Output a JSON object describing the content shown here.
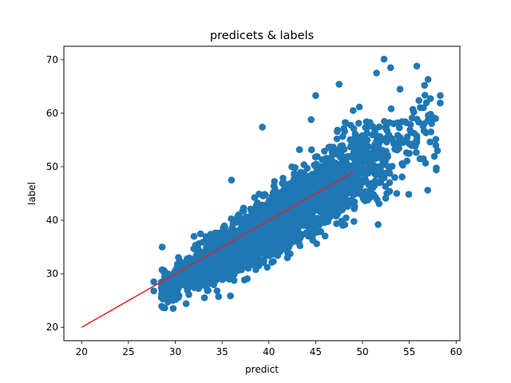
{
  "chart_data": {
    "type": "scatter",
    "title": "predicets & labels",
    "xlabel": "predict",
    "ylabel": "label",
    "xlim": [
      18.1,
      60.4
    ],
    "ylim": [
      17.5,
      72.5
    ],
    "x_ticks": [
      20,
      25,
      30,
      35,
      40,
      45,
      50,
      55,
      60
    ],
    "y_ticks": [
      20,
      30,
      40,
      50,
      60,
      70
    ],
    "grid": false,
    "legend": "none",
    "colors": {
      "points": "#1f77b4",
      "fit_line": "#d62728",
      "axes": "#000000"
    },
    "series": [
      {
        "kind": "scatter",
        "values_description_count": 3000,
        "anchor_points": [
          [
            27.7,
            26.8
          ],
          [
            27.7,
            28.5
          ],
          [
            28.6,
            35.0
          ],
          [
            29.0,
            30.2
          ],
          [
            29.3,
            29.5
          ],
          [
            30.0,
            27.8
          ],
          [
            31.0,
            31.0
          ],
          [
            32.0,
            37.0
          ],
          [
            33.5,
            36.3
          ],
          [
            35.0,
            36.8
          ],
          [
            36.0,
            47.5
          ],
          [
            38.5,
            41.0
          ],
          [
            39.3,
            57.4
          ],
          [
            41.0,
            44.5
          ],
          [
            42.0,
            41.5
          ],
          [
            44.5,
            58.8
          ],
          [
            45.0,
            63.3
          ],
          [
            46.5,
            50.0
          ],
          [
            47.5,
            65.4
          ],
          [
            49.0,
            60.5
          ],
          [
            50.5,
            55.0
          ],
          [
            51.5,
            67.5
          ],
          [
            52.3,
            70.1
          ],
          [
            53.0,
            68.5
          ],
          [
            54.0,
            64.5
          ],
          [
            55.0,
            52.5
          ],
          [
            55.8,
            68.8
          ],
          [
            56.5,
            51.5
          ],
          [
            57.0,
            66.3
          ],
          [
            57.3,
            56.5
          ],
          [
            57.8,
            59.0
          ],
          [
            58.0,
            53.0
          ],
          [
            58.3,
            63.3
          ],
          [
            58.3,
            61.9
          ]
        ]
      },
      {
        "kind": "line",
        "x": [
          20,
          49
        ],
        "y": [
          20,
          49
        ]
      }
    ]
  }
}
